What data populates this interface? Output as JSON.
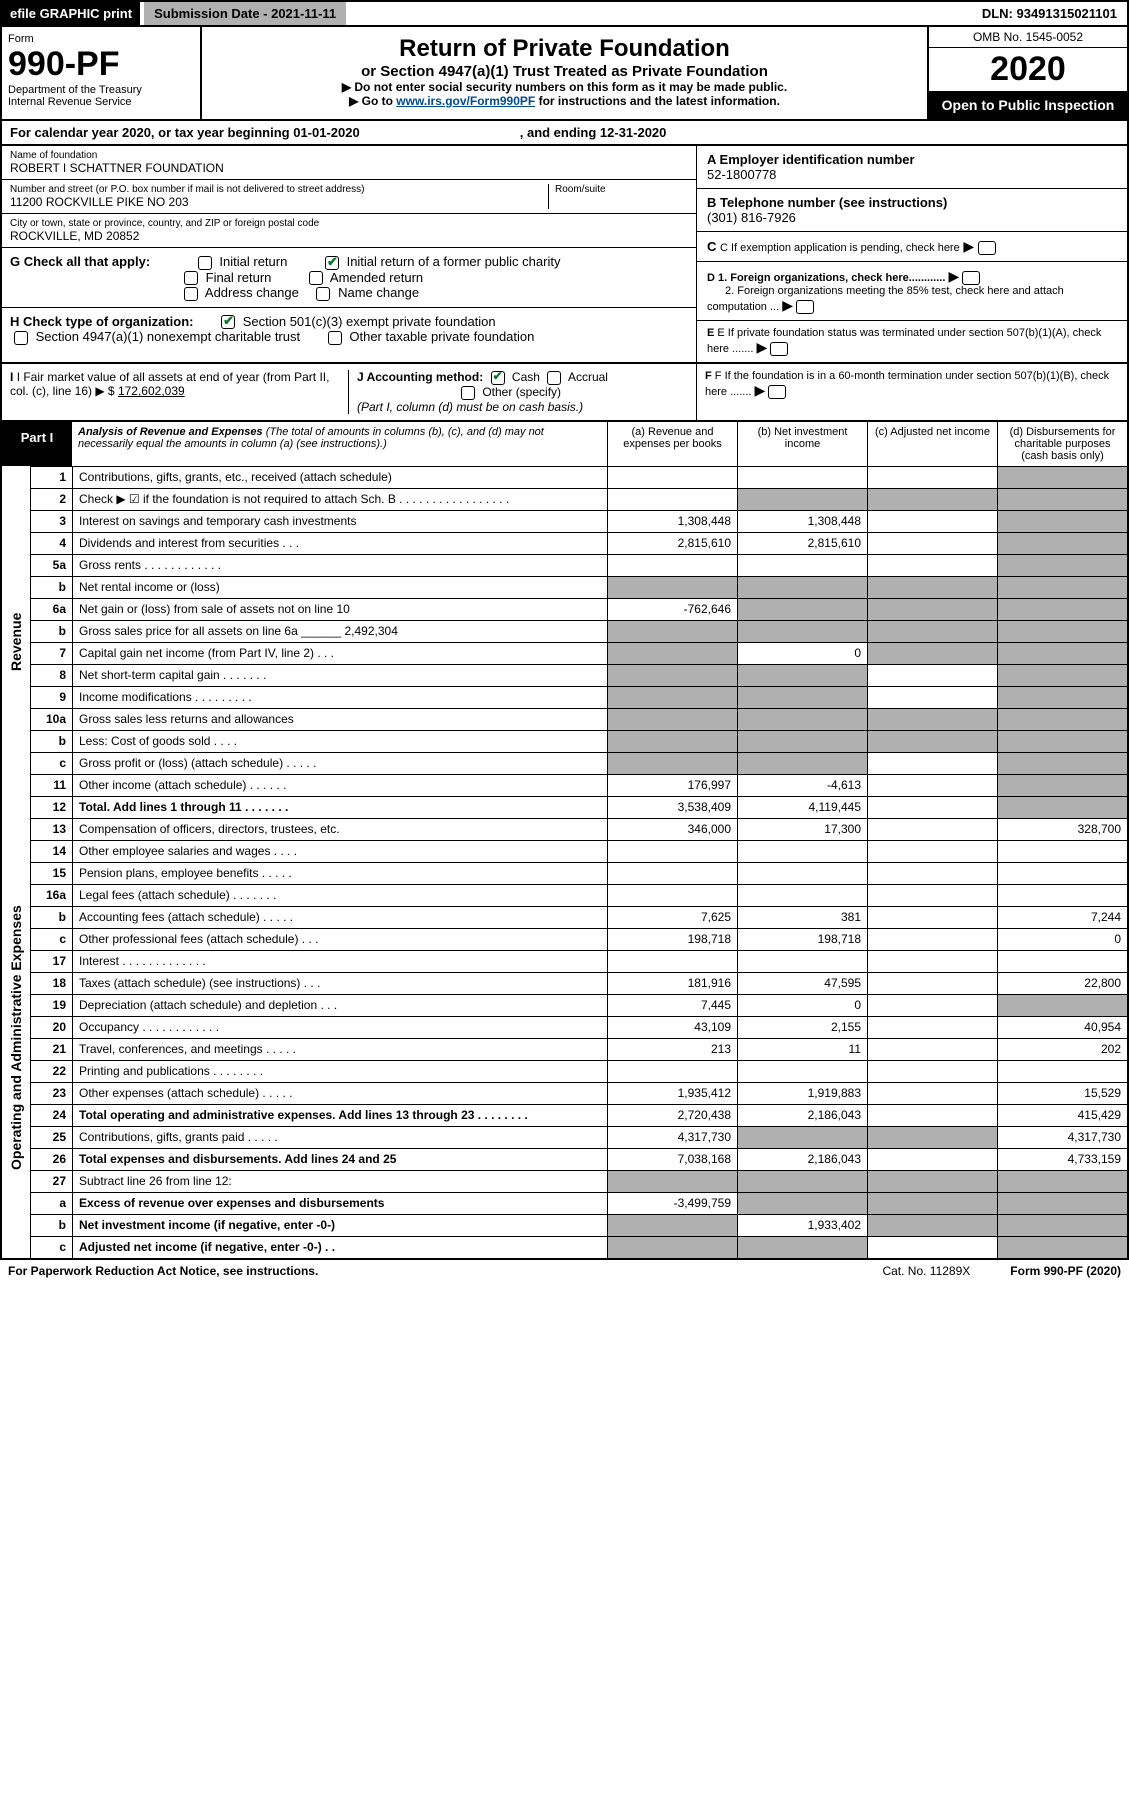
{
  "topbar": {
    "efile": "efile GRAPHIC print",
    "submission": "Submission Date - 2021-11-11",
    "dln": "DLN: 93491315021101"
  },
  "header": {
    "form_label": "Form",
    "form_no": "990-PF",
    "dept": "Department of the Treasury\nInternal Revenue Service",
    "title": "Return of Private Foundation",
    "subtitle": "or Section 4947(a)(1) Trust Treated as Private Foundation",
    "inst1": "▶ Do not enter social security numbers on this form as it may be made public.",
    "inst2_pre": "▶ Go to ",
    "inst2_link": "www.irs.gov/Form990PF",
    "inst2_post": " for instructions and the latest information.",
    "omb": "OMB No. 1545-0052",
    "year": "2020",
    "open": "Open to Public Inspection"
  },
  "calyear": {
    "text": "For calendar year 2020, or tax year beginning 01-01-2020",
    "ending": ", and ending 12-31-2020"
  },
  "info": {
    "name_lab": "Name of foundation",
    "name_val": "ROBERT I SCHATTNER FOUNDATION",
    "addr_lab": "Number and street (or P.O. box number if mail is not delivered to street address)",
    "addr_val": "11200 ROCKVILLE PIKE NO 203",
    "room_lab": "Room/suite",
    "city_lab": "City or town, state or province, country, and ZIP or foreign postal code",
    "city_val": "ROCKVILLE, MD  20852",
    "ein_lab": "A Employer identification number",
    "ein_val": "52-1800778",
    "phone_lab": "B Telephone number (see instructions)",
    "phone_val": "(301) 816-7926",
    "c_lab": "C If exemption application is pending, check here",
    "d1_lab": "D 1. Foreign organizations, check here............",
    "d2_lab": "2. Foreign organizations meeting the 85% test, check here and attach computation ...",
    "e_lab": "E  If private foundation status was terminated under section 507(b)(1)(A), check here .......",
    "f_lab": "F  If the foundation is in a 60-month termination under section 507(b)(1)(B), check here .......",
    "g_lab": "G Check all that apply:",
    "g_opts": [
      "Initial return",
      "Initial return of a former public charity",
      "Final return",
      "Amended return",
      "Address change",
      "Name change"
    ],
    "h_lab": "H Check type of organization:",
    "h1": "Section 501(c)(3) exempt private foundation",
    "h2": "Section 4947(a)(1) nonexempt charitable trust",
    "h3": "Other taxable private foundation",
    "i_lab": "I Fair market value of all assets at end of year (from Part II, col. (c), line 16)  ▶ $",
    "i_val": "172,602,039",
    "j_lab": "J Accounting method:",
    "j_cash": "Cash",
    "j_acc": "Accrual",
    "j_other": "Other (specify)",
    "j_note": "(Part I, column (d) must be on cash basis.)"
  },
  "part1": {
    "tag": "Part I",
    "title": "Analysis of Revenue and Expenses",
    "title_note": " (The total of amounts in columns (b), (c), and (d) may not necessarily equal the amounts in column (a) (see instructions).)",
    "col_a": "(a)  Revenue and expenses per books",
    "col_b": "(b)  Net investment income",
    "col_c": "(c)  Adjusted net income",
    "col_d": "(d)  Disbursements for charitable purposes (cash basis only)",
    "side_rev": "Revenue",
    "side_exp": "Operating and Administrative Expenses"
  },
  "rows": [
    {
      "n": "1",
      "t": "Contributions, gifts, grants, etc., received (attach schedule)",
      "a": "",
      "b": "",
      "c": "",
      "d": "",
      "gd": true
    },
    {
      "n": "2",
      "t": "Check ▶ ☑ if the foundation is not required to attach Sch. B . . . . . . . . . . . . . . . . .",
      "a": "",
      "b": "",
      "c": "",
      "d": "",
      "gd": true,
      "gb": true,
      "gc": true,
      "bold_not": true
    },
    {
      "n": "3",
      "t": "Interest on savings and temporary cash investments",
      "a": "1,308,448",
      "b": "1,308,448",
      "c": "",
      "d": "",
      "gd": true
    },
    {
      "n": "4",
      "t": "Dividends and interest from securities   .  .  .",
      "a": "2,815,610",
      "b": "2,815,610",
      "c": "",
      "d": "",
      "gd": true
    },
    {
      "n": "5a",
      "t": "Gross rents   .  .  .  .  .  .  .  .  .  .  .  .",
      "a": "",
      "b": "",
      "c": "",
      "d": "",
      "gd": true
    },
    {
      "n": "b",
      "t": "Net rental income or (loss)",
      "a": "",
      "b": "",
      "c": "",
      "d": "",
      "ga": true,
      "gb": true,
      "gc": true,
      "gd": true
    },
    {
      "n": "6a",
      "t": "Net gain or (loss) from sale of assets not on line 10",
      "a": "-762,646",
      "b": "",
      "c": "",
      "d": "",
      "gb": true,
      "gc": true,
      "gd": true
    },
    {
      "n": "b",
      "t": "Gross sales price for all assets on line 6a ______ 2,492,304",
      "a": "",
      "b": "",
      "c": "",
      "d": "",
      "ga": true,
      "gb": true,
      "gc": true,
      "gd": true
    },
    {
      "n": "7",
      "t": "Capital gain net income (from Part IV, line 2)   .  .  .",
      "a": "",
      "b": "0",
      "c": "",
      "d": "",
      "ga": true,
      "gc": true,
      "gd": true
    },
    {
      "n": "8",
      "t": "Net short-term capital gain   .  .  .  .  .  .  .",
      "a": "",
      "b": "",
      "c": "",
      "d": "",
      "ga": true,
      "gb": true,
      "gd": true
    },
    {
      "n": "9",
      "t": "Income modifications   .  .  .  .  .  .  .  .  .",
      "a": "",
      "b": "",
      "c": "",
      "d": "",
      "ga": true,
      "gb": true,
      "gd": true
    },
    {
      "n": "10a",
      "t": "Gross sales less returns and allowances",
      "a": "",
      "b": "",
      "c": "",
      "d": "",
      "ga": true,
      "gb": true,
      "gc": true,
      "gd": true
    },
    {
      "n": "b",
      "t": "Less: Cost of goods sold   .  .  .  .",
      "a": "",
      "b": "",
      "c": "",
      "d": "",
      "ga": true,
      "gb": true,
      "gc": true,
      "gd": true
    },
    {
      "n": "c",
      "t": "Gross profit or (loss) (attach schedule)   .  .  .  .  .",
      "a": "",
      "b": "",
      "c": "",
      "d": "",
      "ga": true,
      "gb": true,
      "gd": true
    },
    {
      "n": "11",
      "t": "Other income (attach schedule)   .  .  .  .  .  .",
      "a": "176,997",
      "b": "-4,613",
      "c": "",
      "d": "",
      "gd": true
    },
    {
      "n": "12",
      "t": "Total. Add lines 1 through 11   .  .  .  .  .  .  .",
      "a": "3,538,409",
      "b": "4,119,445",
      "c": "",
      "d": "",
      "bold": true,
      "gd": true
    },
    {
      "n": "13",
      "t": "Compensation of officers, directors, trustees, etc.",
      "a": "346,000",
      "b": "17,300",
      "c": "",
      "d": "328,700"
    },
    {
      "n": "14",
      "t": "Other employee salaries and wages   .  .  .  .",
      "a": "",
      "b": "",
      "c": "",
      "d": ""
    },
    {
      "n": "15",
      "t": "Pension plans, employee benefits   .  .  .  .  .",
      "a": "",
      "b": "",
      "c": "",
      "d": ""
    },
    {
      "n": "16a",
      "t": "Legal fees (attach schedule)   .  .  .  .  .  .  .",
      "a": "",
      "b": "",
      "c": "",
      "d": ""
    },
    {
      "n": "b",
      "t": "Accounting fees (attach schedule)   .  .  .  .  .",
      "a": "7,625",
      "b": "381",
      "c": "",
      "d": "7,244"
    },
    {
      "n": "c",
      "t": "Other professional fees (attach schedule)   .  .  .",
      "a": "198,718",
      "b": "198,718",
      "c": "",
      "d": "0"
    },
    {
      "n": "17",
      "t": "Interest   .  .  .  .  .  .  .  .  .  .  .  .  .",
      "a": "",
      "b": "",
      "c": "",
      "d": ""
    },
    {
      "n": "18",
      "t": "Taxes (attach schedule) (see instructions)   .  .  .",
      "a": "181,916",
      "b": "47,595",
      "c": "",
      "d": "22,800"
    },
    {
      "n": "19",
      "t": "Depreciation (attach schedule) and depletion   .  .  .",
      "a": "7,445",
      "b": "0",
      "c": "",
      "d": "",
      "gd": true
    },
    {
      "n": "20",
      "t": "Occupancy   .  .  .  .  .  .  .  .  .  .  .  .",
      "a": "43,109",
      "b": "2,155",
      "c": "",
      "d": "40,954"
    },
    {
      "n": "21",
      "t": "Travel, conferences, and meetings   .  .  .  .  .",
      "a": "213",
      "b": "11",
      "c": "",
      "d": "202"
    },
    {
      "n": "22",
      "t": "Printing and publications   .  .  .  .  .  .  .  .",
      "a": "",
      "b": "",
      "c": "",
      "d": ""
    },
    {
      "n": "23",
      "t": "Other expenses (attach schedule)   .  .  .  .  .",
      "a": "1,935,412",
      "b": "1,919,883",
      "c": "",
      "d": "15,529"
    },
    {
      "n": "24",
      "t": "Total operating and administrative expenses. Add lines 13 through 23   .  .  .  .  .  .  .  .",
      "a": "2,720,438",
      "b": "2,186,043",
      "c": "",
      "d": "415,429",
      "bold": true
    },
    {
      "n": "25",
      "t": "Contributions, gifts, grants paid   .  .  .  .  .",
      "a": "4,317,730",
      "b": "",
      "c": "",
      "d": "4,317,730",
      "gb": true,
      "gc": true
    },
    {
      "n": "26",
      "t": "Total expenses and disbursements. Add lines 24 and 25",
      "a": "7,038,168",
      "b": "2,186,043",
      "c": "",
      "d": "4,733,159",
      "bold": true
    },
    {
      "n": "27",
      "t": "Subtract line 26 from line 12:",
      "a": "",
      "b": "",
      "c": "",
      "d": "",
      "ga": true,
      "gb": true,
      "gc": true,
      "gd": true
    },
    {
      "n": "a",
      "t": "Excess of revenue over expenses and disbursements",
      "a": "-3,499,759",
      "b": "",
      "c": "",
      "d": "",
      "bold": true,
      "gb": true,
      "gc": true,
      "gd": true
    },
    {
      "n": "b",
      "t": "Net investment income (if negative, enter -0-)",
      "a": "",
      "b": "1,933,402",
      "c": "",
      "d": "",
      "bold": true,
      "ga": true,
      "gc": true,
      "gd": true
    },
    {
      "n": "c",
      "t": "Adjusted net income (if negative, enter -0-)   .  .",
      "a": "",
      "b": "",
      "c": "",
      "d": "",
      "bold": true,
      "ga": true,
      "gb": true,
      "gd": true
    }
  ],
  "footer": {
    "pra": "For Paperwork Reduction Act Notice, see instructions.",
    "cat": "Cat. No. 11289X",
    "form": "Form 990-PF (2020)"
  }
}
